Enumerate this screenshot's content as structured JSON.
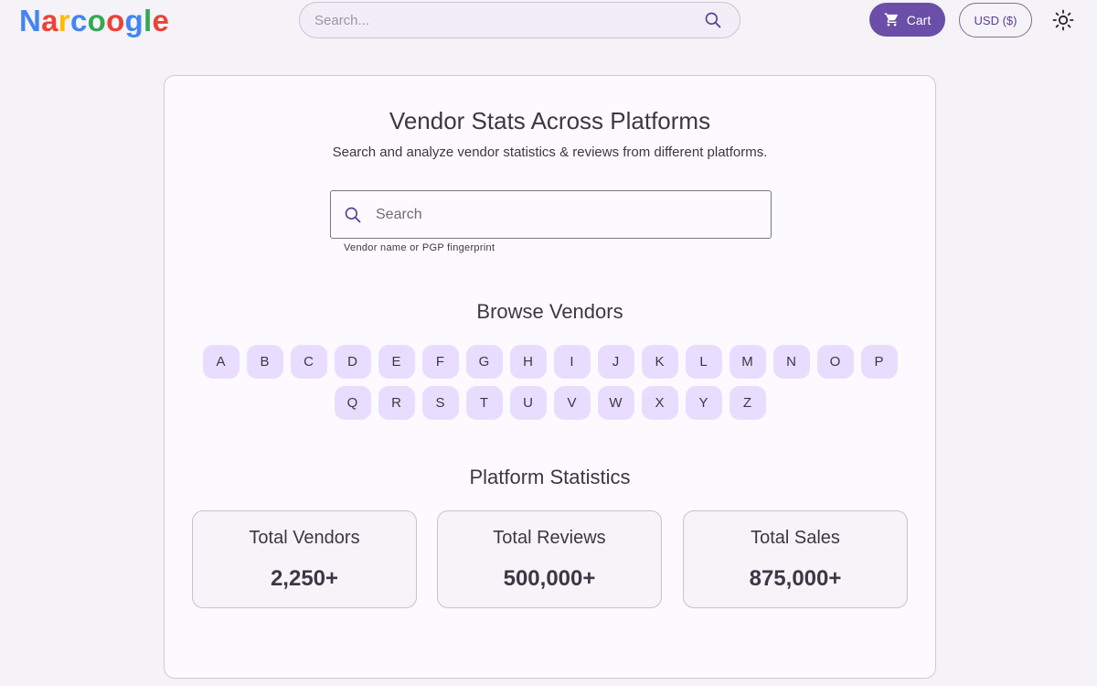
{
  "header": {
    "logo": {
      "letters": [
        "N",
        "a",
        "r",
        "c",
        "o",
        "o",
        "g",
        "l",
        "e"
      ],
      "colors": [
        "#4285f4",
        "#ea4335",
        "#fbbc05",
        "#4285f4",
        "#34a853",
        "#ea4335",
        "#4285f4",
        "#34a853",
        "#ea4335"
      ]
    },
    "search": {
      "placeholder": "Search...",
      "icon": "search-icon"
    },
    "cart_label": "Cart",
    "currency_label": "USD ($)",
    "theme_icon": "sun-icon"
  },
  "main": {
    "title": "Vendor Stats Across Platforms",
    "subtitle": "Search and analyze vendor statistics & reviews from different platforms.",
    "search": {
      "placeholder": "Search",
      "helper": "Vendor name or PGP fingerprint"
    },
    "browse_title": "Browse Vendors",
    "letters": [
      "A",
      "B",
      "C",
      "D",
      "E",
      "F",
      "G",
      "H",
      "I",
      "J",
      "K",
      "L",
      "M",
      "N",
      "O",
      "P",
      "Q",
      "R",
      "S",
      "T",
      "U",
      "V",
      "W",
      "X",
      "Y",
      "Z"
    ],
    "stats_title": "Platform Statistics",
    "stats": [
      {
        "label": "Total Vendors",
        "value": "2,250+"
      },
      {
        "label": "Total Reviews",
        "value": "500,000+"
      },
      {
        "label": "Total Sales",
        "value": "875,000+"
      }
    ]
  },
  "colors": {
    "accent": "#6b4ea8",
    "letter_bg": "#e9ddff",
    "page_bg": "#f5f2f8"
  }
}
